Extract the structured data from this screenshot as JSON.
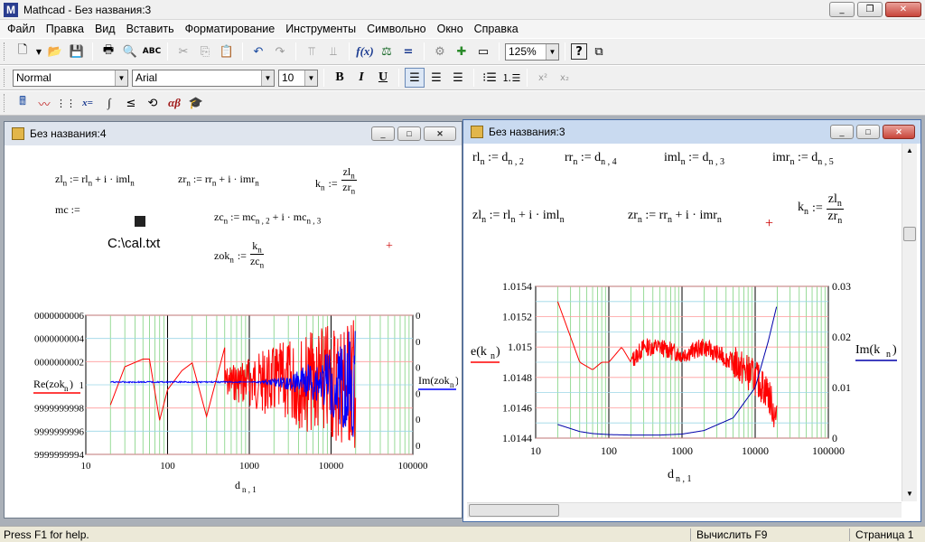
{
  "app": {
    "title": "Mathcad - Без названия:3"
  },
  "menu": [
    "Файл",
    "Правка",
    "Вид",
    "Вставить",
    "Форматирование",
    "Инструменты",
    "Символьно",
    "Окно",
    "Справка"
  ],
  "toolbar": {
    "zoom": "125%"
  },
  "format": {
    "style": "Normal",
    "font": "Arial",
    "size": "10",
    "bold": "B",
    "italic": "I",
    "underline": "U"
  },
  "win4": {
    "title": "Без названия:4",
    "eq1": "zl",
    "eq1b": "n",
    "eq1c": ":= rl",
    "eq1d": "n",
    "eq1e": "+ i · iml",
    "eq1f": "n",
    "eq2": "zr",
    "eq2b": "n",
    "eq2c": ":= rr",
    "eq2d": "n",
    "eq2e": "+ i · imr",
    "eq2f": "n",
    "eq3": "k",
    "eq3b": "n",
    "eq3c": ":=",
    "eq3num": "zl",
    "eq3nums": "n",
    "eq3den": "zr",
    "eq3dens": "n",
    "mc": "mc :=",
    "file": "C:\\cal.txt",
    "eq4": "zc",
    "eq4b": "n",
    "eq4c": ":= mc",
    "eq4d": "n , 2",
    "eq4e": "+ i · mc",
    "eq4f": "n , 3",
    "eq5": "zok",
    "eq5b": "n",
    "eq5c": ":=",
    "eq5num": "k",
    "eq5nums": "n",
    "eq5den": "zc",
    "eq5dens": "n"
  },
  "win3": {
    "title": "Без названия:3",
    "a1": "rl",
    "a1s": "n",
    "a1c": ":= d",
    "a1d": "n , 2",
    "a2": "rr",
    "a2s": "n",
    "a2c": ":= d",
    "a2d": "n , 4",
    "a3": "iml",
    "a3s": "n",
    "a3c": ":= d",
    "a3d": "n , 3",
    "a4": "imr",
    "a4s": "n",
    "a4c": ":= d",
    "a4d": "n , 5",
    "b1": "zl",
    "b1s": "n",
    "b1c": ":= rl",
    "b1d": "n",
    "b1e": "+ i · iml",
    "b1f": "n",
    "b2": "zr",
    "b2s": "n",
    "b2c": ":= rr",
    "b2d": "n",
    "b2e": "+ i · imr",
    "b2f": "n",
    "b3": "k",
    "b3s": "n",
    "b3c": ":=",
    "b3num": "zl",
    "b3nums": "n",
    "b3den": "zr",
    "b3dens": "n"
  },
  "chart_data": [
    {
      "type": "line",
      "x_scale": "log",
      "xlim": [
        10,
        100000
      ],
      "x_ticks": [
        "10",
        "100",
        "1000",
        "10000",
        "100000"
      ],
      "y_ticks": [
        "0000000006",
        "0000000004",
        "0000000002",
        "1",
        "9999999998",
        "9999999996",
        "9999999994"
      ],
      "y2_ticks": [
        "0",
        "0",
        "0",
        "0",
        "0",
        "0"
      ],
      "xlabel": "d",
      "xlabel_sub": "n , 1",
      "ylabel": "Re(zok",
      "ylabel_sub": "n",
      "ylabel_end": ")",
      "y2label": "Im(zok",
      "y2label_sub": "n",
      "y2label_end": ")",
      "series": [
        {
          "color": "#ff0000",
          "x": [
            20,
            30,
            50,
            60,
            80,
            100,
            150,
            200,
            300,
            500,
            800,
            1000,
            2000,
            5000,
            10000,
            20000
          ]
        },
        {
          "color": "#0000ff",
          "x": [
            20,
            30,
            50,
            100,
            200,
            500,
            1000,
            2000,
            5000,
            10000,
            20000
          ]
        }
      ]
    },
    {
      "type": "line",
      "x_scale": "log",
      "xlim": [
        10,
        100000
      ],
      "ylim": [
        1.0144,
        1.0154
      ],
      "y2lim": [
        0,
        0.03
      ],
      "x_ticks": [
        "10",
        "100",
        "1000",
        "10000",
        "100000"
      ],
      "y_ticks": [
        "1.0154",
        "1.0152",
        "1.015",
        "1.0148",
        "1.0146",
        "1.0144"
      ],
      "y2_ticks": [
        "0.03",
        "0.02",
        "0.01",
        "0"
      ],
      "xlabel": "d",
      "xlabel_sub": "n , 1",
      "ylabel": "e(k",
      "ylabel_sub": "n",
      "ylabel_end": ")",
      "y2label": "Im(k",
      "y2label_sub": "n",
      "y2label_end": ")",
      "series": [
        {
          "color": "#ff0000",
          "x": [
            20,
            40,
            60,
            80,
            100,
            150,
            200,
            300,
            500,
            1000,
            2000,
            5000,
            10000,
            15000,
            20000
          ],
          "y": [
            1.0153,
            1.0149,
            1.01485,
            1.0149,
            1.0149,
            1.015,
            1.0149,
            1.015,
            1.015,
            1.01495,
            1.015,
            1.0149,
            1.0148,
            1.0147,
            1.0145
          ]
        },
        {
          "color": "#0000aa",
          "x": [
            20,
            40,
            60,
            100,
            200,
            500,
            1000,
            2000,
            5000,
            10000,
            15000,
            20000
          ],
          "y": [
            0.0027,
            0.0013,
            0.0009,
            0.0007,
            0.0006,
            0.0006,
            0.0008,
            0.0015,
            0.004,
            0.01,
            0.019,
            0.0265
          ]
        }
      ]
    }
  ],
  "status": {
    "help": "Press F1 for help.",
    "calc": "Вычислить F9",
    "page": "Страница 1"
  }
}
